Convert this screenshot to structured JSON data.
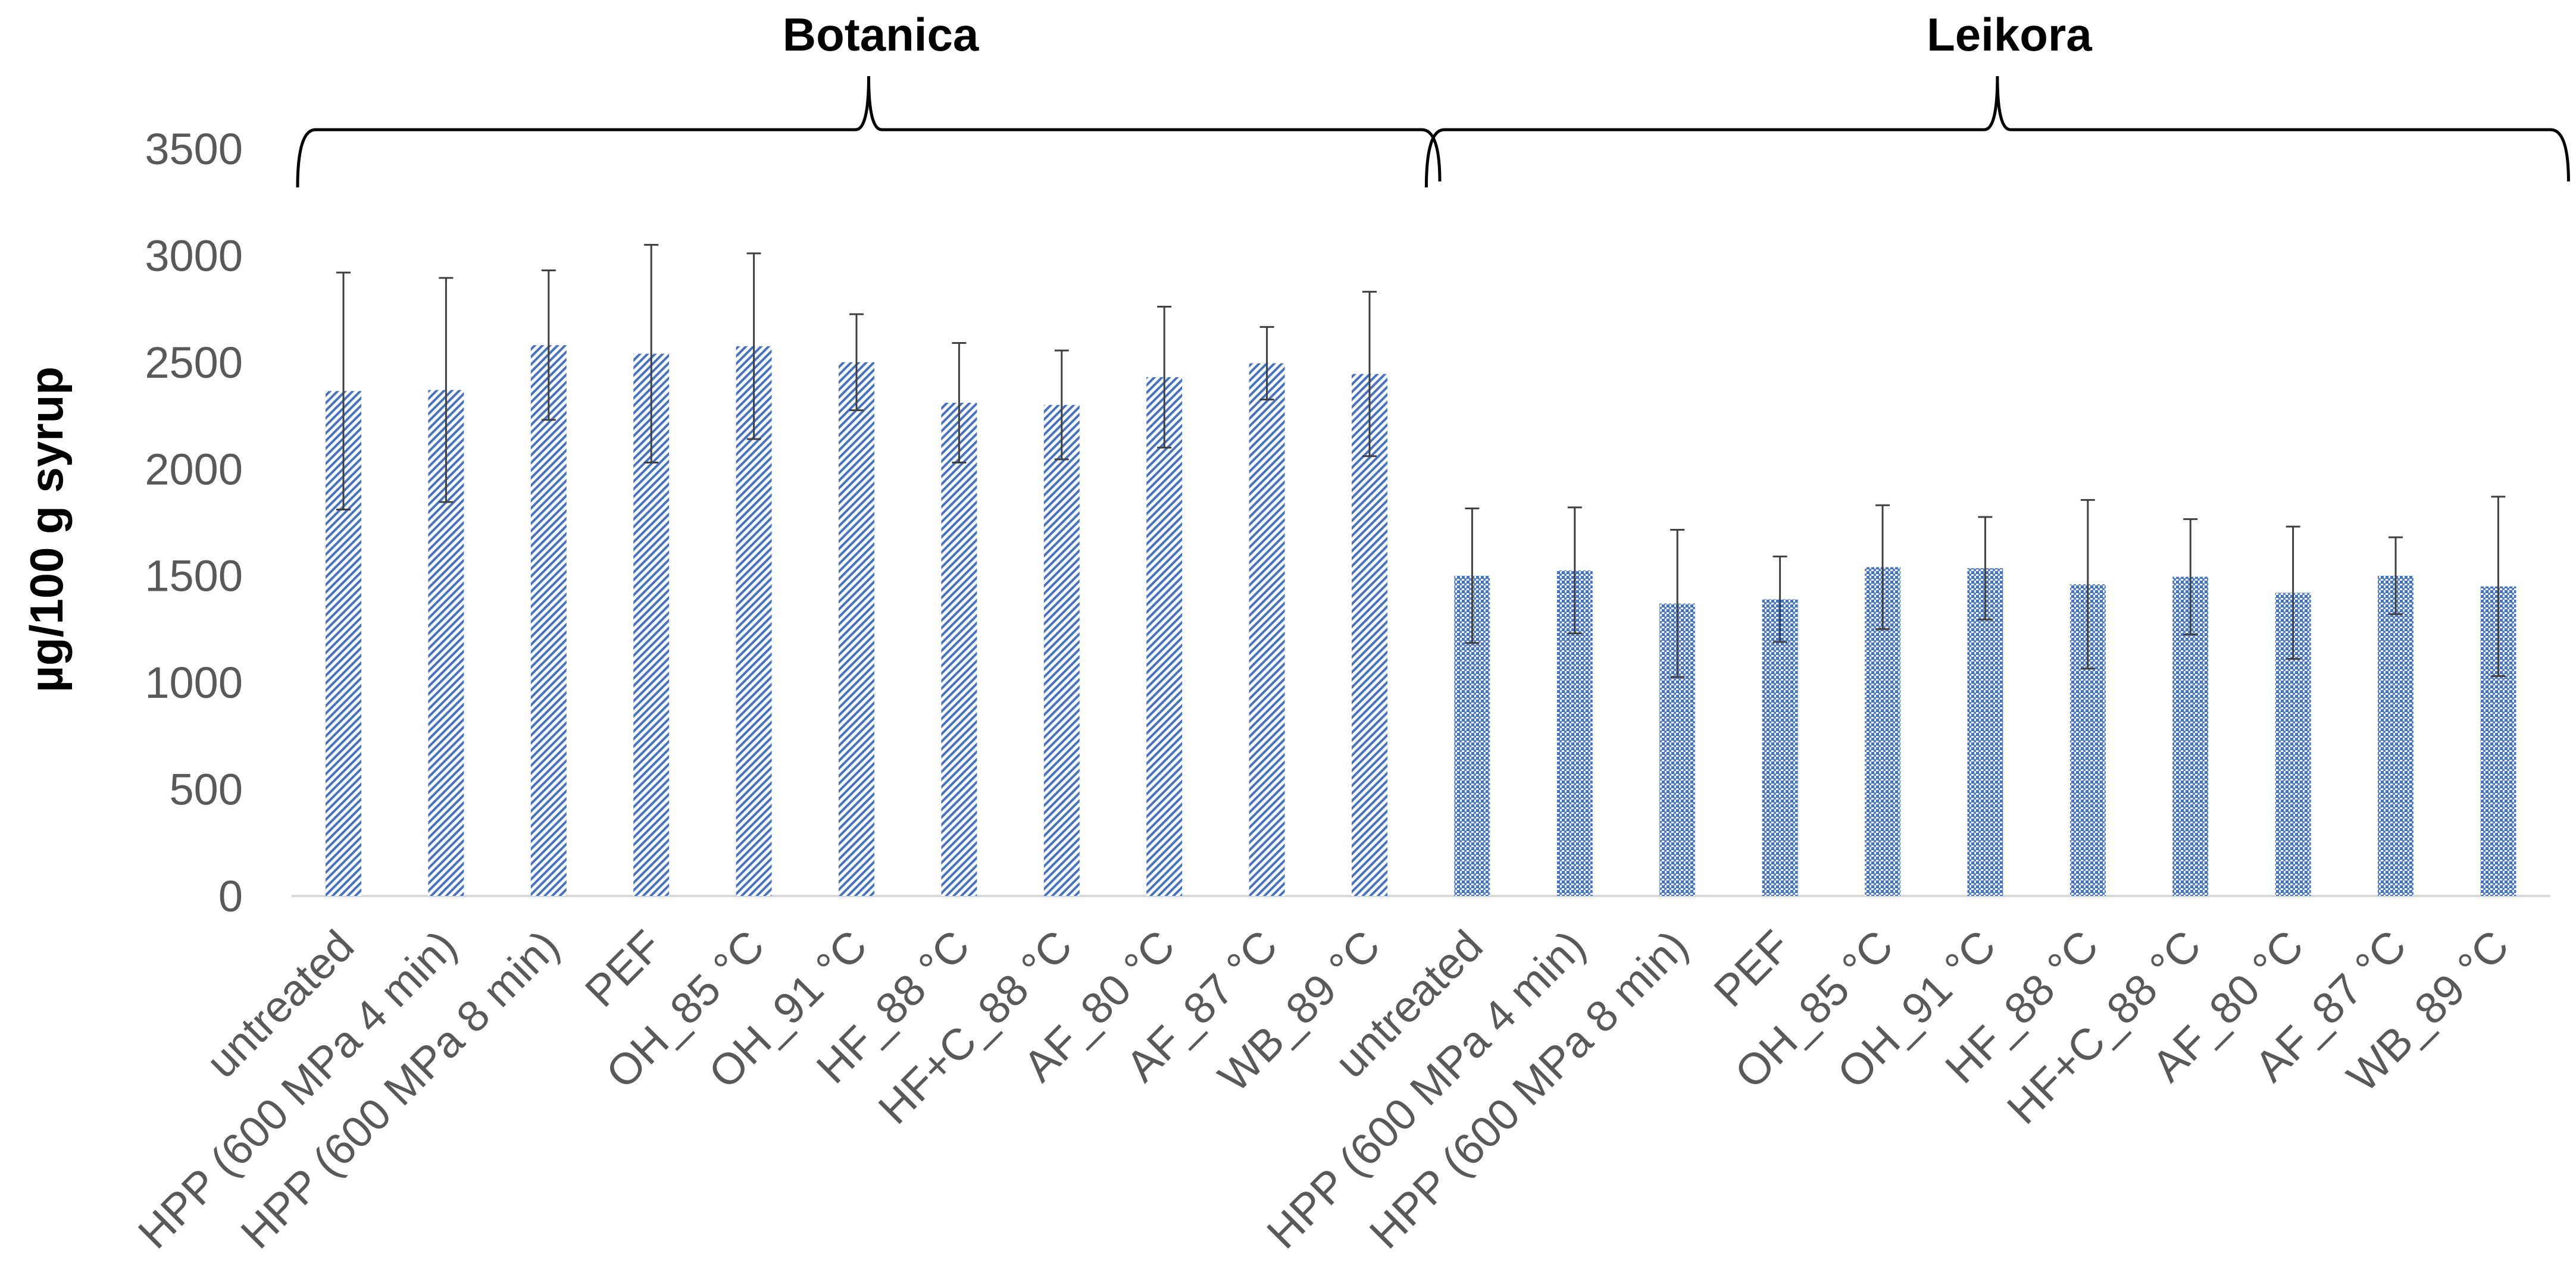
{
  "chart_data": {
    "type": "bar",
    "title": "",
    "xlabel": "",
    "ylabel": "µg/100 g syrup",
    "ylim": [
      0,
      3500
    ],
    "yticks": [
      0,
      500,
      1000,
      1500,
      2000,
      2500,
      3000,
      3500
    ],
    "grid": false,
    "groups": [
      {
        "name": "Botanica",
        "pattern": "diagonal-hatch",
        "color": "#4472C4",
        "categories": [
          "untreated",
          "HPP (600 MPa 4 min)",
          "HPP (600 MPa 8 min)",
          "PEF",
          "OH_85 °C",
          "OH_91 °C",
          "HF_88 °C",
          "HF+C_88 °C",
          "AF_80 °C",
          "AF_87 °C",
          "WB_89 °C"
        ],
        "values": [
          2365,
          2370,
          2580,
          2540,
          2575,
          2500,
          2310,
          2300,
          2430,
          2495,
          2445
        ],
        "errors": [
          555,
          525,
          350,
          510,
          435,
          225,
          280,
          255,
          330,
          170,
          385
        ]
      },
      {
        "name": "Leikora",
        "pattern": "dotted",
        "color": "#4472C4",
        "categories": [
          "untreated",
          "HPP (600 MPa 4 min)",
          "HPP (600 MPa 8 min)",
          "PEF",
          "OH_85 °C",
          "OH_91 °C",
          "HF_88 °C",
          "HF+C_88 °C",
          "AF_80 °C",
          "AF_87 °C",
          "WB_89 °C"
        ],
        "values": [
          1500,
          1525,
          1370,
          1390,
          1540,
          1535,
          1460,
          1495,
          1420,
          1500,
          1450
        ],
        "errors": [
          315,
          295,
          345,
          200,
          290,
          240,
          395,
          270,
          310,
          180,
          420
        ]
      }
    ]
  }
}
